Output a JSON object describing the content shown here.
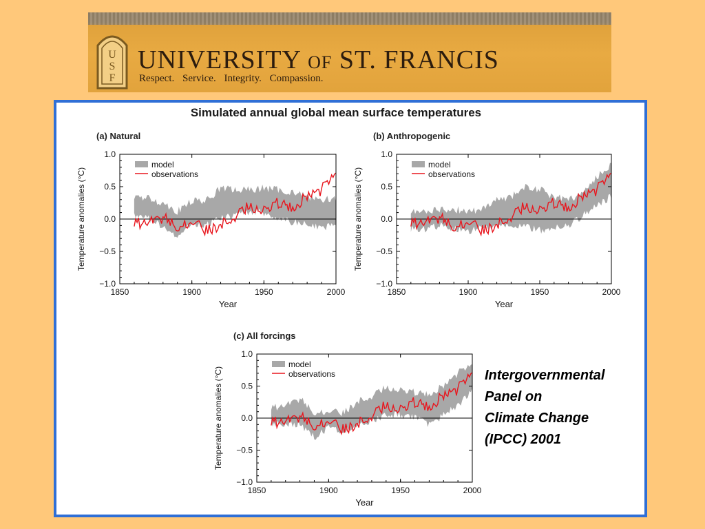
{
  "header": {
    "university_name": "UNIVERSITY",
    "university_of": "OF",
    "university_place": "ST. FRANCIS",
    "tagline": "Respect. Service. Integrity. Compassion.",
    "logo_letters": [
      "U",
      "S",
      "F"
    ],
    "colors": {
      "banner": "#E8AA42",
      "background": "#FFC87A",
      "frame": "#2F6FD6"
    }
  },
  "figure_title": "Simulated annual global mean surface temperatures",
  "caption": [
    "Intergovernmental",
    "Panel on",
    "Climate Change",
    "(IPCC) 2001"
  ],
  "chart_data": [
    {
      "type": "line",
      "panel_title": "(a) Natural",
      "xlabel": "Year",
      "ylabel": "Temperature anomalies (°C)",
      "xlim": [
        1850,
        2000
      ],
      "ylim": [
        -1.0,
        1.0
      ],
      "x_ticks": [
        "1850",
        "1900",
        "1950",
        "2000"
      ],
      "y_ticks": [
        "1.0",
        "0.5",
        "0.0",
        "−0.5",
        "−1.0"
      ],
      "legend": [
        "model",
        "observations"
      ],
      "legend_position": "top-left",
      "x": [
        1860,
        1870,
        1880,
        1890,
        1900,
        1910,
        1920,
        1930,
        1940,
        1950,
        1960,
        1970,
        1980,
        1990,
        2000
      ],
      "series": [
        {
          "name": "model",
          "kind": "band",
          "color": "#a8a8a8",
          "low": [
            0.05,
            0.0,
            -0.12,
            -0.28,
            -0.08,
            -0.1,
            0.02,
            0.05,
            0.12,
            0.1,
            0.0,
            -0.05,
            -0.08,
            -0.15,
            -0.05
          ],
          "high": [
            0.33,
            0.32,
            0.25,
            0.12,
            0.28,
            0.28,
            0.48,
            0.45,
            0.45,
            0.48,
            0.45,
            0.42,
            0.35,
            0.3,
            0.32
          ]
        },
        {
          "name": "observations",
          "kind": "line",
          "color": "#e8161e",
          "values": [
            -0.08,
            -0.05,
            0.02,
            -0.1,
            -0.05,
            -0.18,
            -0.1,
            0.05,
            0.2,
            0.15,
            0.25,
            0.18,
            0.35,
            0.45,
            0.8
          ]
        }
      ]
    },
    {
      "type": "line",
      "panel_title": "(b) Anthropogenic",
      "xlabel": "Year",
      "ylabel": "Temperature anomalies (°C)",
      "xlim": [
        1850,
        2000
      ],
      "ylim": [
        -1.0,
        1.0
      ],
      "x_ticks": [
        "1850",
        "1900",
        "1950",
        "2000"
      ],
      "y_ticks": [
        "1.0",
        "0.5",
        "0.0",
        "−0.5",
        "−1.0"
      ],
      "legend": [
        "model",
        "observations"
      ],
      "legend_position": "top-left",
      "x": [
        1860,
        1870,
        1880,
        1890,
        1900,
        1910,
        1920,
        1930,
        1940,
        1950,
        1960,
        1970,
        1980,
        1990,
        2000
      ],
      "series": [
        {
          "name": "model",
          "kind": "band",
          "color": "#a8a8a8",
          "low": [
            -0.15,
            -0.15,
            -0.1,
            -0.15,
            -0.2,
            -0.12,
            -0.1,
            -0.1,
            -0.1,
            -0.18,
            -0.15,
            -0.1,
            0.05,
            0.2,
            0.35
          ],
          "high": [
            0.12,
            0.12,
            0.15,
            0.15,
            0.12,
            0.15,
            0.3,
            0.35,
            0.5,
            0.45,
            0.35,
            0.3,
            0.4,
            0.65,
            0.85
          ]
        },
        {
          "name": "observations",
          "kind": "line",
          "color": "#e8161e",
          "values": [
            -0.08,
            -0.05,
            0.02,
            -0.1,
            -0.05,
            -0.18,
            -0.1,
            0.05,
            0.2,
            0.15,
            0.25,
            0.18,
            0.35,
            0.45,
            0.8
          ]
        }
      ]
    },
    {
      "type": "line",
      "panel_title": "(c) All forcings",
      "xlabel": "Year",
      "ylabel": "Temperature anomalies (°C)",
      "xlim": [
        1850,
        2000
      ],
      "ylim": [
        -1.0,
        1.0
      ],
      "x_ticks": [
        "1850",
        "1900",
        "1950",
        "2000"
      ],
      "y_ticks": [
        "1.0",
        "0.5",
        "0.0",
        "−0.5",
        "−1.0"
      ],
      "legend": [
        "model",
        "observations"
      ],
      "legend_position": "top-left",
      "x": [
        1860,
        1870,
        1880,
        1890,
        1900,
        1910,
        1920,
        1930,
        1940,
        1950,
        1960,
        1970,
        1980,
        1990,
        2000
      ],
      "series": [
        {
          "name": "model",
          "kind": "band",
          "color": "#a8a8a8",
          "low": [
            -0.1,
            -0.08,
            -0.1,
            -0.3,
            -0.15,
            -0.2,
            -0.12,
            -0.05,
            0.05,
            0.05,
            0.0,
            -0.1,
            0.05,
            0.2,
            0.45
          ],
          "high": [
            0.15,
            0.2,
            0.3,
            0.1,
            0.1,
            0.08,
            0.25,
            0.35,
            0.48,
            0.45,
            0.4,
            0.38,
            0.5,
            0.7,
            0.9
          ]
        },
        {
          "name": "observations",
          "kind": "line",
          "color": "#e8161e",
          "values": [
            -0.08,
            -0.05,
            0.02,
            -0.1,
            -0.05,
            -0.18,
            -0.1,
            0.05,
            0.2,
            0.15,
            0.25,
            0.18,
            0.35,
            0.45,
            0.8
          ]
        }
      ]
    }
  ]
}
